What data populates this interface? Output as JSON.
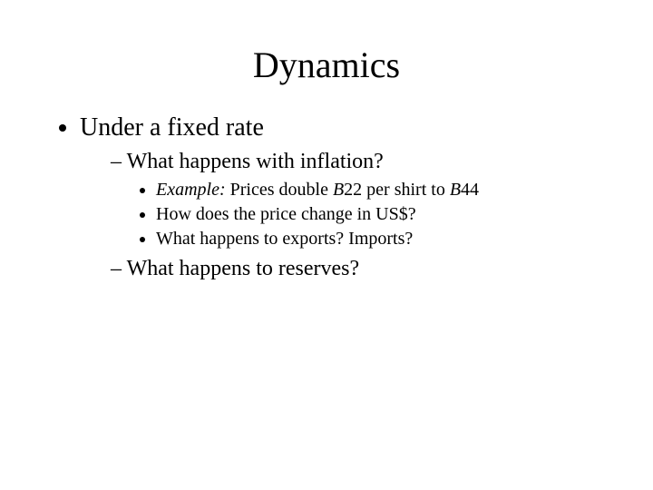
{
  "title": "Dynamics",
  "level1": {
    "item1": "Under a fixed rate"
  },
  "level2": {
    "item1": "What happens with inflation?",
    "item2": "What happens to reserves?"
  },
  "level3": {
    "item1_prefix": "Example:",
    "item1_rest": " Prices double ",
    "item1_b1": "B",
    "item1_num1": "22 per shirt to ",
    "item1_b2": "B",
    "item1_num2": "44",
    "item2": "How does the price change in US$?",
    "item3": "What happens to exports?  Imports?"
  },
  "colors": {
    "background": "#ffffff",
    "text": "#000000"
  },
  "typography": {
    "font_family": "Times New Roman",
    "title_fontsize": 40,
    "level1_fontsize": 28,
    "level2_fontsize": 24,
    "level3_fontsize": 20
  }
}
